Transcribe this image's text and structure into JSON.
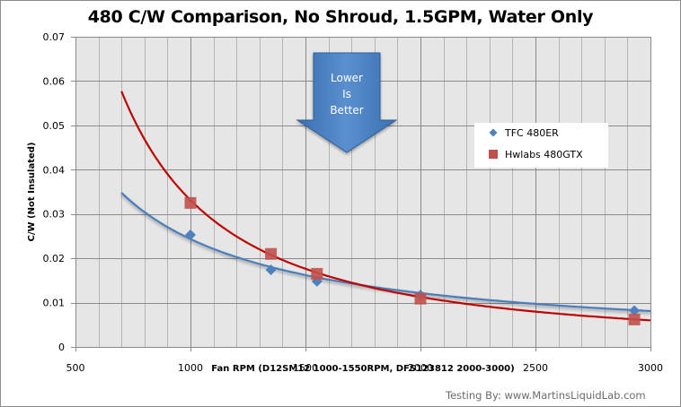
{
  "chart_data": {
    "type": "scatter",
    "title": "480 C/W Comparison, No Shroud, 1.5GPM, Water Only",
    "xlabel": "Fan RPM (D12SM12  1000-1550RPM, DFS123812 2000-3000)",
    "ylabel": "C/W (Not Insulated)",
    "xlim": [
      500,
      3000
    ],
    "ylim": [
      0,
      0.07
    ],
    "x_ticks": [
      500,
      1000,
      1500,
      2000,
      2500,
      3000
    ],
    "x_tick_labels": [
      "500",
      "1000",
      "1500",
      "2000",
      "2500",
      "3000"
    ],
    "y_ticks": [
      0,
      0.01,
      0.02,
      0.03,
      0.04,
      0.05,
      0.06,
      0.07
    ],
    "y_tick_labels": [
      "0",
      "0.01",
      "0.02",
      "0.03",
      "0.04",
      "0.05",
      "0.06",
      "0.07"
    ],
    "x_minor_step": 100,
    "grid": true,
    "legend_position": "right",
    "series": [
      {
        "name": "TFC 480ER",
        "marker": "diamond",
        "color": "#4f81bd",
        "trend_color": "#4a7ebb",
        "x": [
          1000,
          1350,
          1550,
          2000,
          2930
        ],
        "y": [
          0.0253,
          0.0174,
          0.0148,
          0.0117,
          0.0082
        ],
        "trendline": {
          "type": "power",
          "x_start": 700,
          "x_end": 3000,
          "y_at_start": 0.0348,
          "y_at_end": 0.0081
        }
      },
      {
        "name": "Hwlabs 480GTX",
        "marker": "square",
        "color": "#c0504d",
        "trend_color": "#c00000",
        "x": [
          1000,
          1350,
          1550,
          2000,
          2930
        ],
        "y": [
          0.0325,
          0.021,
          0.0165,
          0.0109,
          0.0062
        ],
        "trendline": {
          "type": "power",
          "x_start": 700,
          "x_end": 3000,
          "y_at_start": 0.0577,
          "y_at_end": 0.006
        }
      }
    ],
    "annotations": [
      {
        "type": "arrow-down",
        "text_lines": [
          "Lower",
          "Is",
          "Better"
        ],
        "color": "#4a7ebb"
      }
    ],
    "credit": "Testing By: www.MartinsLiquidLab.com"
  },
  "colors": {
    "plot_background": "#e6e6e6",
    "major_grid": "#8a8a8a",
    "minor_grid": "#b4b4b4"
  }
}
